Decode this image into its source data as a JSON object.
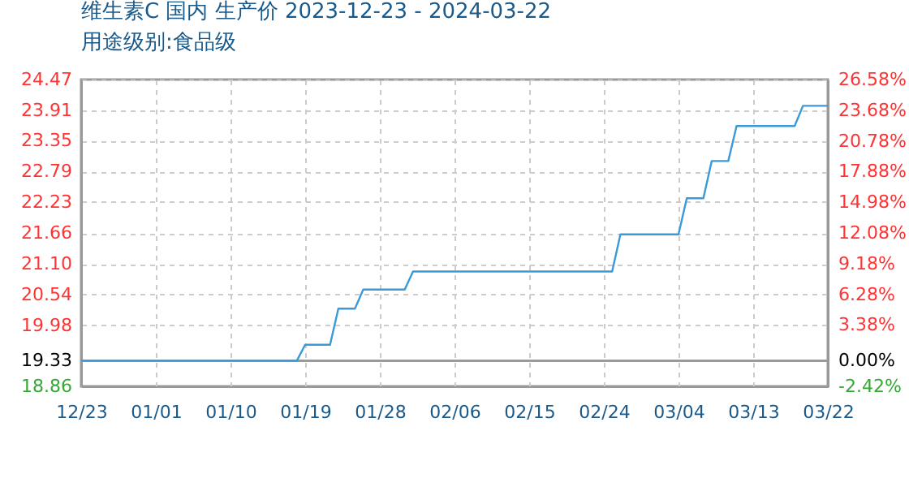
{
  "chart_data": {
    "type": "line",
    "title": "维生素C 国内 生产价 2023-12-23 - 2024-03-22",
    "subtitle": "用途级别:食品级",
    "x": [
      "2023-12-23",
      "2024-01-18",
      "2024-01-19",
      "2024-01-22",
      "2024-01-23",
      "2024-01-25",
      "2024-01-26",
      "2024-01-31",
      "2024-02-01",
      "2024-02-25",
      "2024-02-26",
      "2024-03-04",
      "2024-03-05",
      "2024-03-07",
      "2024-03-08",
      "2024-03-10",
      "2024-03-11",
      "2024-03-18",
      "2024-03-19",
      "2024-03-22"
    ],
    "series": [
      {
        "color": "#3a9ad9",
        "values": [
          19.33,
          19.33,
          19.62,
          19.62,
          20.28,
          20.28,
          20.63,
          20.63,
          20.96,
          20.96,
          21.64,
          21.64,
          22.3,
          22.3,
          22.98,
          22.98,
          23.62,
          23.62,
          23.99,
          23.99
        ]
      }
    ],
    "xlim": [
      "2023-12-23",
      "2024-03-22"
    ],
    "xticks": [
      {
        "value": "2023-12-23",
        "label": "12/23"
      },
      {
        "value": "2024-01-01",
        "label": "01/01"
      },
      {
        "value": "2024-01-10",
        "label": "01/10"
      },
      {
        "value": "2024-01-19",
        "label": "01/19"
      },
      {
        "value": "2024-01-28",
        "label": "01/28"
      },
      {
        "value": "2024-02-06",
        "label": "02/06"
      },
      {
        "value": "2024-02-15",
        "label": "02/15"
      },
      {
        "value": "2024-02-24",
        "label": "02/24"
      },
      {
        "value": "2024-03-04",
        "label": "03/04"
      },
      {
        "value": "2024-03-13",
        "label": "03/13"
      },
      {
        "value": "2024-03-22",
        "label": "03/22"
      }
    ],
    "ylim": [
      18.86,
      24.47
    ],
    "yticks": [
      {
        "value": 18.86,
        "label": "18.86"
      },
      {
        "value": 19.33,
        "label": "19.33"
      },
      {
        "value": 19.98,
        "label": "19.98"
      },
      {
        "value": 20.54,
        "label": "20.54"
      },
      {
        "value": 21.1,
        "label": "21.10"
      },
      {
        "value": 21.66,
        "label": "21.66"
      },
      {
        "value": 22.23,
        "label": "22.23"
      },
      {
        "value": 22.79,
        "label": "22.79"
      },
      {
        "value": 23.35,
        "label": "23.35"
      },
      {
        "value": 23.91,
        "label": "23.91"
      },
      {
        "value": 24.47,
        "label": "24.47"
      }
    ],
    "y2lim": [
      -2.42,
      26.58
    ],
    "y2ticks": [
      {
        "value": -2.42,
        "label": "-2.42%"
      },
      {
        "value": 0,
        "label": "0.00%"
      },
      {
        "value": 3.38,
        "label": "3.38%"
      },
      {
        "value": 6.28,
        "label": "6.28%"
      },
      {
        "value": 9.18,
        "label": "9.18%"
      },
      {
        "value": 12.08,
        "label": "12.08%"
      },
      {
        "value": 14.98,
        "label": "14.98%"
      },
      {
        "value": 17.88,
        "label": "17.88%"
      },
      {
        "value": 20.78,
        "label": "20.78%"
      },
      {
        "value": 23.68,
        "label": "23.68%"
      },
      {
        "value": 26.58,
        "label": "26.58%"
      }
    ],
    "ref_lines": [
      {
        "axis": "y2",
        "value": 0,
        "color": "#999999"
      }
    ],
    "grid": true,
    "marker": "none",
    "line_style": "solid"
  }
}
